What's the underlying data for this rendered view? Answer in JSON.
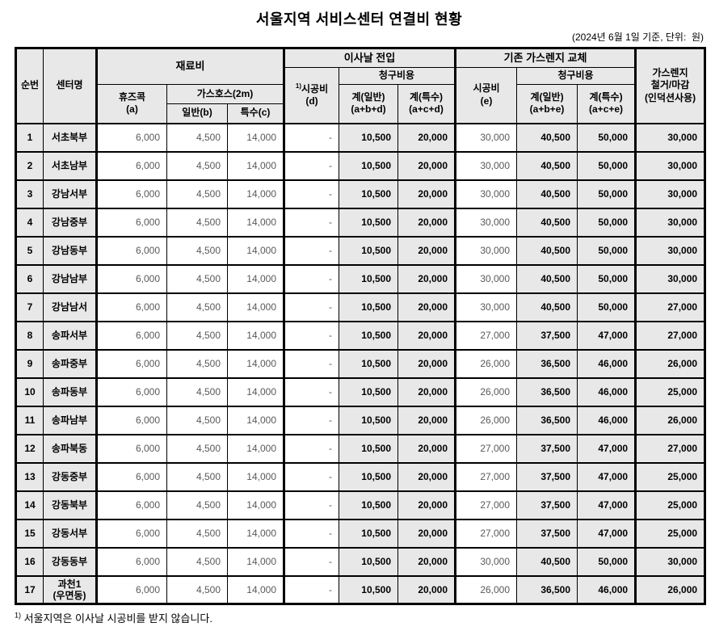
{
  "title": "서울지역 서비스센터 연결비 현황",
  "subtitle": "(2024년 6월 1일 기준, 단위:  원)",
  "footnote": {
    "marker": "1)",
    "text": " 서울지역은 이사날 시공비를 받지 않습니다."
  },
  "colors": {
    "header_bg": "#e8e8e8",
    "shaded_cell_bg": "#e8e8e8",
    "border": "#000000",
    "regular_text": "#595959",
    "bold_text": "#000000"
  },
  "table": {
    "headers": {
      "no": "순번",
      "center": "센터명",
      "material_group": "재료비",
      "fusecock": "휴즈콕\n(a)",
      "gashose_group": "가스호스(2m)",
      "general_b": "일반(b)",
      "special_c": "특수(c)",
      "moving_group": "이사날 전입",
      "d_sup": "1)",
      "d_label": "시공비\n(d)",
      "billing_group_d": "청구비용",
      "total_general_d": "계(일반)\n(a+b+d)",
      "total_special_d": "계(특수)\n(a+c+d)",
      "replace_group": "기존 가스렌지 교체",
      "e_label": "시공비\n(e)",
      "billing_group_e": "청구비용",
      "total_general_e": "계(일반)\n(a+b+e)",
      "total_special_e": "계(특수)\n(a+c+e)",
      "removal": "가스렌지\n철거/마감\n(인덕션사용)"
    },
    "rows": [
      {
        "no": "1",
        "name": "서초북부",
        "a": "6,000",
        "b": "4,500",
        "c": "14,000",
        "d": "-",
        "abd": "10,500",
        "acd": "20,000",
        "e": "30,000",
        "abe": "40,500",
        "ace": "50,000",
        "removal": "30,000"
      },
      {
        "no": "2",
        "name": "서초남부",
        "a": "6,000",
        "b": "4,500",
        "c": "14,000",
        "d": "-",
        "abd": "10,500",
        "acd": "20,000",
        "e": "30,000",
        "abe": "40,500",
        "ace": "50,000",
        "removal": "30,000"
      },
      {
        "no": "3",
        "name": "강남서부",
        "a": "6,000",
        "b": "4,500",
        "c": "14,000",
        "d": "-",
        "abd": "10,500",
        "acd": "20,000",
        "e": "30,000",
        "abe": "40,500",
        "ace": "50,000",
        "removal": "30,000"
      },
      {
        "no": "4",
        "name": "강남중부",
        "a": "6,000",
        "b": "4,500",
        "c": "14,000",
        "d": "-",
        "abd": "10,500",
        "acd": "20,000",
        "e": "30,000",
        "abe": "40,500",
        "ace": "50,000",
        "removal": "30,000"
      },
      {
        "no": "5",
        "name": "강남동부",
        "a": "6,000",
        "b": "4,500",
        "c": "14,000",
        "d": "-",
        "abd": "10,500",
        "acd": "20,000",
        "e": "30,000",
        "abe": "40,500",
        "ace": "50,000",
        "removal": "30,000"
      },
      {
        "no": "6",
        "name": "강남남부",
        "a": "6,000",
        "b": "4,500",
        "c": "14,000",
        "d": "-",
        "abd": "10,500",
        "acd": "20,000",
        "e": "30,000",
        "abe": "40,500",
        "ace": "50,000",
        "removal": "30,000"
      },
      {
        "no": "7",
        "name": "강남남서",
        "a": "6,000",
        "b": "4,500",
        "c": "14,000",
        "d": "-",
        "abd": "10,500",
        "acd": "20,000",
        "e": "30,000",
        "abe": "40,500",
        "ace": "50,000",
        "removal": "27,000"
      },
      {
        "no": "8",
        "name": "송파서부",
        "a": "6,000",
        "b": "4,500",
        "c": "14,000",
        "d": "-",
        "abd": "10,500",
        "acd": "20,000",
        "e": "27,000",
        "abe": "37,500",
        "ace": "47,000",
        "removal": "27,000"
      },
      {
        "no": "9",
        "name": "송파중부",
        "a": "6,000",
        "b": "4,500",
        "c": "14,000",
        "d": "-",
        "abd": "10,500",
        "acd": "20,000",
        "e": "26,000",
        "abe": "36,500",
        "ace": "46,000",
        "removal": "26,000"
      },
      {
        "no": "10",
        "name": "송파동부",
        "a": "6,000",
        "b": "4,500",
        "c": "14,000",
        "d": "-",
        "abd": "10,500",
        "acd": "20,000",
        "e": "26,000",
        "abe": "36,500",
        "ace": "46,000",
        "removal": "25,000"
      },
      {
        "no": "11",
        "name": "송파남부",
        "a": "6,000",
        "b": "4,500",
        "c": "14,000",
        "d": "-",
        "abd": "10,500",
        "acd": "20,000",
        "e": "26,000",
        "abe": "36,500",
        "ace": "46,000",
        "removal": "26,000"
      },
      {
        "no": "12",
        "name": "송파북동",
        "a": "6,000",
        "b": "4,500",
        "c": "14,000",
        "d": "-",
        "abd": "10,500",
        "acd": "20,000",
        "e": "27,000",
        "abe": "37,500",
        "ace": "47,000",
        "removal": "27,000"
      },
      {
        "no": "13",
        "name": "강동중부",
        "a": "6,000",
        "b": "4,500",
        "c": "14,000",
        "d": "-",
        "abd": "10,500",
        "acd": "20,000",
        "e": "27,000",
        "abe": "37,500",
        "ace": "47,000",
        "removal": "25,000"
      },
      {
        "no": "14",
        "name": "강동북부",
        "a": "6,000",
        "b": "4,500",
        "c": "14,000",
        "d": "-",
        "abd": "10,500",
        "acd": "20,000",
        "e": "27,000",
        "abe": "37,500",
        "ace": "47,000",
        "removal": "25,000"
      },
      {
        "no": "15",
        "name": "강동서부",
        "a": "6,000",
        "b": "4,500",
        "c": "14,000",
        "d": "-",
        "abd": "10,500",
        "acd": "20,000",
        "e": "27,000",
        "abe": "37,500",
        "ace": "47,000",
        "removal": "25,000"
      },
      {
        "no": "16",
        "name": "강동동부",
        "a": "6,000",
        "b": "4,500",
        "c": "14,000",
        "d": "-",
        "abd": "10,500",
        "acd": "20,000",
        "e": "30,000",
        "abe": "40,500",
        "ace": "50,000",
        "removal": "30,000"
      },
      {
        "no": "17",
        "name": "과천1\n(우면동)",
        "a": "6,000",
        "b": "4,500",
        "c": "14,000",
        "d": "-",
        "abd": "10,500",
        "acd": "20,000",
        "e": "26,000",
        "abe": "36,500",
        "ace": "46,000",
        "removal": "26,000"
      }
    ]
  }
}
